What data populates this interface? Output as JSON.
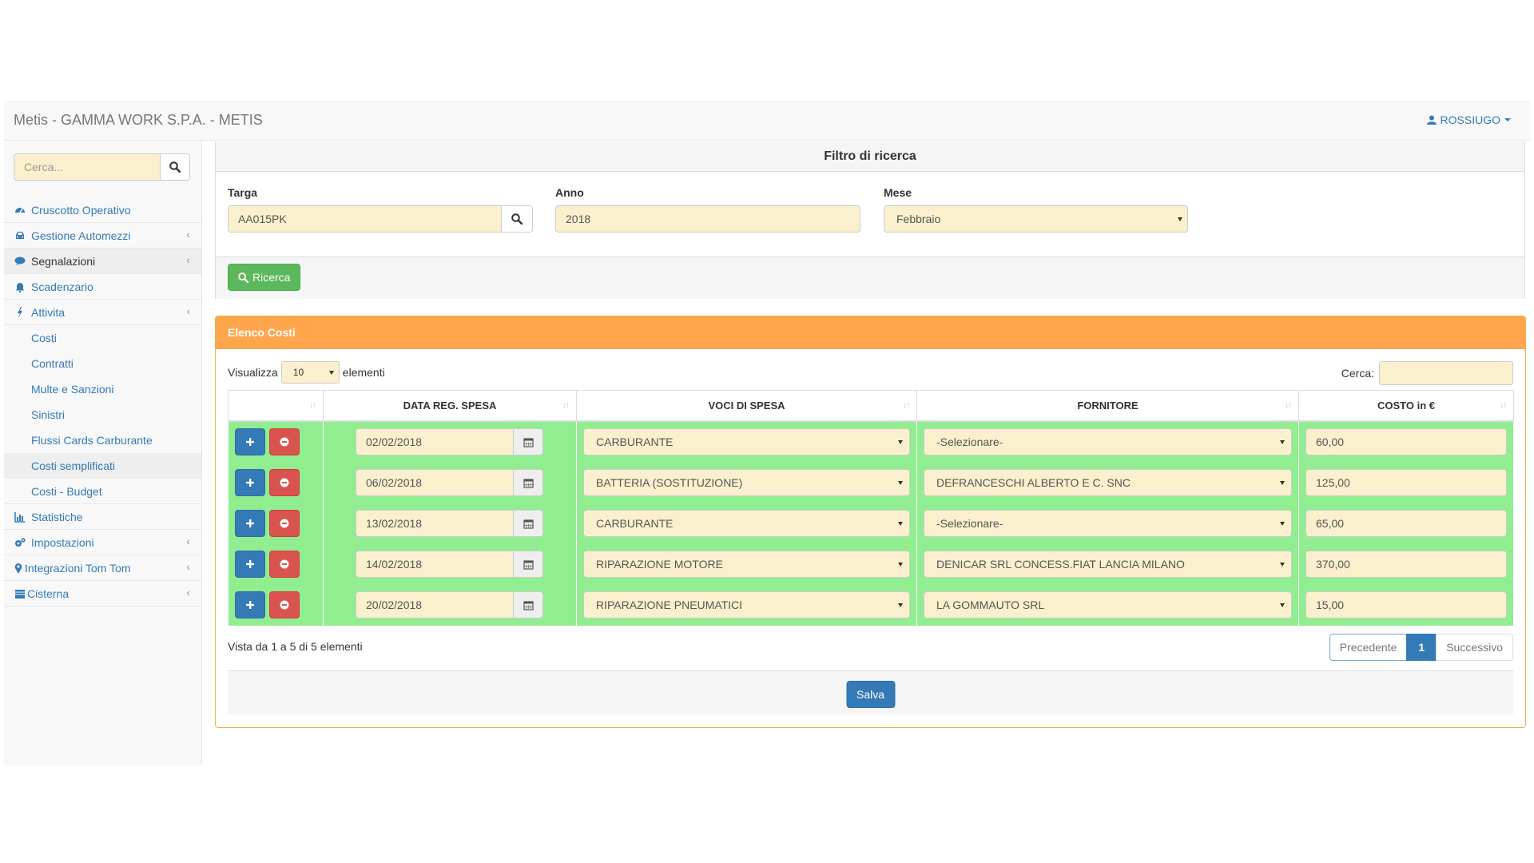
{
  "header": {
    "title": "Metis - GAMMA WORK S.P.A. - METIS",
    "user": "ROSSIUGO"
  },
  "sidebar": {
    "search_placeholder": "Cerca...",
    "items": [
      {
        "label": "Cruscotto Operativo",
        "icon": "dashboard-icon"
      },
      {
        "label": "Gestione Automezzi",
        "icon": "car-icon",
        "expandable": true
      },
      {
        "label": "Segnalazioni",
        "icon": "comment-icon",
        "expandable": true,
        "active": true
      },
      {
        "label": "Scadenzario",
        "icon": "bell-icon"
      },
      {
        "label": "Attivita",
        "icon": "bolt-icon",
        "expandable": true,
        "open": true
      },
      {
        "label": "Costi",
        "sub": true
      },
      {
        "label": "Contratti",
        "sub": true
      },
      {
        "label": "Multe e Sanzioni",
        "sub": true
      },
      {
        "label": "Sinistri",
        "sub": true
      },
      {
        "label": "Flussi Cards Carburante",
        "sub": true
      },
      {
        "label": "Costi semplificati",
        "sub": true,
        "active": true
      },
      {
        "label": "Costi - Budget",
        "sub": true
      },
      {
        "label": "Statistiche",
        "icon": "bar-chart-icon"
      },
      {
        "label": "Impostazioni",
        "icon": "gears-icon",
        "expandable": true
      },
      {
        "label": "Integrazioni Tom Tom",
        "icon": "map-marker-icon",
        "expandable": true
      },
      {
        "label": "Cisterna",
        "icon": "tank-icon",
        "expandable": true
      }
    ]
  },
  "filter": {
    "title": "Filtro di ricerca",
    "targa_label": "Targa",
    "targa_value": "AA015PK",
    "anno_label": "Anno",
    "anno_value": "2018",
    "mese_label": "Mese",
    "mese_value": "Febbraio",
    "search_button": "Ricerca"
  },
  "costs": {
    "title": "Elenco Costi",
    "show_label": "Visualizza",
    "page_size": "10",
    "elements_label": "elementi",
    "search_label": "Cerca:",
    "columns": [
      "",
      "DATA REG. SPESA",
      "VOCI DI SPESA",
      "FORNITORE",
      "COSTO in €"
    ],
    "rows": [
      {
        "date": "02/02/2018",
        "voce": "CARBURANTE",
        "fornitore": "-Selezionare-",
        "costo": "60,00"
      },
      {
        "date": "06/02/2018",
        "voce": "BATTERIA (SOSTITUZIONE)",
        "fornitore": "DEFRANCESCHI ALBERTO E C. SNC",
        "costo": "125,00"
      },
      {
        "date": "13/02/2018",
        "voce": "CARBURANTE",
        "fornitore": "-Selezionare-",
        "costo": "65,00"
      },
      {
        "date": "14/02/2018",
        "voce": "RIPARAZIONE MOTORE",
        "fornitore": "DENICAR SRL CONCESS.FIAT LANCIA MILANO",
        "costo": "370,00"
      },
      {
        "date": "20/02/2018",
        "voce": "RIPARAZIONE PNEUMATICI",
        "fornitore": "LA GOMMAUTO SRL",
        "costo": "15,00"
      }
    ],
    "info": "Vista da 1 a 5 di 5 elementi",
    "pager": {
      "prev": "Precedente",
      "current": "1",
      "next": "Successivo"
    },
    "save_button": "Salva"
  },
  "colors": {
    "accent": "#337ab7",
    "success": "#5cb85c",
    "danger": "#d9534f",
    "panel_warning": "#ffa64d",
    "row_bg": "#90ee90",
    "input_bg": "#faf0cd"
  }
}
